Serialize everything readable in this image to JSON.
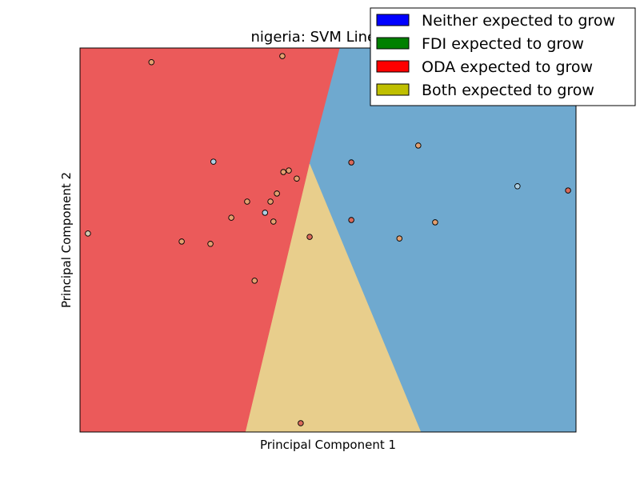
{
  "chart_data": {
    "type": "scatter",
    "title": "nigeria: SVM Linear-C",
    "xlabel": "Principal Component 1",
    "ylabel": "Principal Component 2",
    "xlim": [
      0,
      100
    ],
    "ylim": [
      0,
      100
    ],
    "ticks_shown": false,
    "grid": false,
    "legend_placement": "top-right",
    "legend": [
      {
        "label": "Neither expected to grow",
        "color": "#0000ff"
      },
      {
        "label": "FDI expected to grow",
        "color": "#008000"
      },
      {
        "label": "ODA expected to grow",
        "color": "#ff0000"
      },
      {
        "label": "Both expected to grow",
        "color": "#bfbf00"
      }
    ],
    "regions": [
      {
        "class": "ODA expected to grow",
        "color": "#eb5a5a",
        "polygon": [
          [
            0,
            100
          ],
          [
            52.4,
            100
          ],
          [
            46.3,
            69.8
          ],
          [
            33.4,
            0
          ],
          [
            0,
            0
          ]
        ]
      },
      {
        "class": "Neither expected to grow",
        "color": "#6fa9cf",
        "polygon": [
          [
            52.4,
            100
          ],
          [
            100,
            100
          ],
          [
            100,
            0
          ],
          [
            68.7,
            0
          ],
          [
            46.3,
            69.8
          ]
        ]
      },
      {
        "class": "Both expected to grow",
        "color": "#e8ce8c",
        "polygon": [
          [
            46.3,
            69.8
          ],
          [
            68.7,
            0
          ],
          [
            33.4,
            0
          ]
        ]
      }
    ],
    "points": [
      {
        "x": 14.4,
        "y": 96.3,
        "color": "#e4a070"
      },
      {
        "x": 40.8,
        "y": 97.9,
        "color": "#e4a070"
      },
      {
        "x": 1.6,
        "y": 51.7,
        "color": "#d3c9b1"
      },
      {
        "x": 26.9,
        "y": 70.4,
        "color": "#aed0e4"
      },
      {
        "x": 20.5,
        "y": 49.6,
        "color": "#e4a070"
      },
      {
        "x": 26.3,
        "y": 49.0,
        "color": "#e4a070"
      },
      {
        "x": 30.5,
        "y": 55.8,
        "color": "#e4a070"
      },
      {
        "x": 33.7,
        "y": 60.0,
        "color": "#e4a070"
      },
      {
        "x": 37.3,
        "y": 57.1,
        "color": "#aed0e4"
      },
      {
        "x": 38.4,
        "y": 60.0,
        "color": "#e4a070"
      },
      {
        "x": 39.0,
        "y": 54.8,
        "color": "#e4a070"
      },
      {
        "x": 39.7,
        "y": 62.1,
        "color": "#e4a070"
      },
      {
        "x": 41.0,
        "y": 67.7,
        "color": "#e4a070"
      },
      {
        "x": 42.1,
        "y": 68.1,
        "color": "#e4a070"
      },
      {
        "x": 43.7,
        "y": 66.0,
        "color": "#e4a070"
      },
      {
        "x": 35.2,
        "y": 39.4,
        "color": "#e4a070"
      },
      {
        "x": 46.3,
        "y": 50.8,
        "color": "#d96a5a"
      },
      {
        "x": 44.5,
        "y": 2.3,
        "color": "#d96a5a"
      },
      {
        "x": 54.7,
        "y": 70.2,
        "color": "#d96a5a"
      },
      {
        "x": 54.7,
        "y": 55.2,
        "color": "#d96a5a"
      },
      {
        "x": 64.4,
        "y": 50.4,
        "color": "#e4a070"
      },
      {
        "x": 68.2,
        "y": 74.6,
        "color": "#e4a070"
      },
      {
        "x": 71.6,
        "y": 54.6,
        "color": "#e4a070"
      },
      {
        "x": 88.2,
        "y": 64.0,
        "color": "#aed0e4"
      },
      {
        "x": 98.4,
        "y": 62.9,
        "color": "#d96a5a"
      }
    ]
  }
}
